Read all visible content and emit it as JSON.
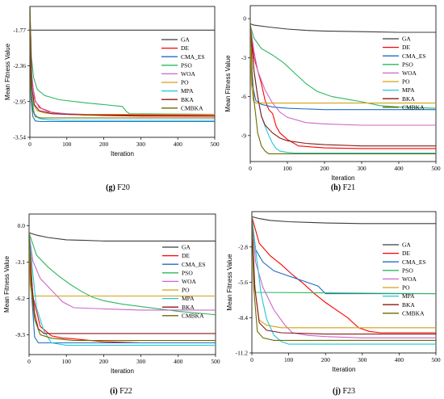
{
  "chart_data": [
    {
      "type": "line",
      "caption_letter": "(g)",
      "caption_text": " F20",
      "xlabel": "Iteration",
      "ylabel": "Mean Fitness Value",
      "xlim": [
        0,
        500
      ],
      "ylim": [
        -3.54,
        -1.38
      ],
      "xticks": [
        0,
        100,
        200,
        300,
        400,
        500
      ],
      "yticks": [
        -1.77,
        -2.36,
        -2.95,
        -3.54
      ],
      "ytick_labels": [
        "-1.77",
        "-2.36",
        "-2.95",
        "-3.54"
      ],
      "legend_position": "top-right",
      "series": [
        {
          "name": "GA",
          "color": "#3c3c3c",
          "x": [
            0,
            1,
            500
          ],
          "y": [
            -1.39,
            -1.77,
            -1.77
          ]
        },
        {
          "name": "DE",
          "color": "#ff0000",
          "x": [
            0,
            5,
            15,
            30,
            60,
            100,
            200,
            300,
            500
          ],
          "y": [
            -1.39,
            -2.6,
            -2.95,
            -3.06,
            -3.13,
            -3.16,
            -3.18,
            -3.19,
            -3.19
          ]
        },
        {
          "name": "CMA_ES",
          "color": "#1e6ec8",
          "x": [
            0,
            3,
            8,
            15,
            30,
            500
          ],
          "y": [
            -1.39,
            -2.9,
            -3.2,
            -3.27,
            -3.28,
            -3.28
          ]
        },
        {
          "name": "PSO",
          "color": "#2eb85c",
          "x": [
            0,
            4,
            10,
            20,
            40,
            80,
            150,
            200,
            250,
            262,
            270,
            500
          ],
          "y": [
            -1.39,
            -2.2,
            -2.55,
            -2.75,
            -2.85,
            -2.92,
            -2.97,
            -3.0,
            -3.03,
            -3.12,
            -3.15,
            -3.16
          ]
        },
        {
          "name": "WOA",
          "color": "#cc66cc",
          "x": [
            0,
            5,
            12,
            25,
            50,
            100,
            200,
            500
          ],
          "y": [
            -1.39,
            -2.5,
            -2.9,
            -3.05,
            -3.12,
            -3.15,
            -3.17,
            -3.18
          ]
        },
        {
          "name": "PO",
          "color": "#d4a017",
          "x": [
            0,
            4,
            10,
            20,
            40,
            100,
            500
          ],
          "y": [
            -1.39,
            -2.7,
            -3.0,
            -3.1,
            -3.14,
            -3.16,
            -3.16
          ]
        },
        {
          "name": "MPA",
          "color": "#1fc8d8",
          "x": [
            0,
            5,
            12,
            25,
            50,
            100,
            500
          ],
          "y": [
            -1.39,
            -2.85,
            -3.15,
            -3.23,
            -3.25,
            -3.26,
            -3.26
          ]
        },
        {
          "name": "BKA",
          "color": "#8b1a1a",
          "x": [
            0,
            5,
            12,
            25,
            60,
            150,
            500
          ],
          "y": [
            -1.39,
            -2.7,
            -3.0,
            -3.1,
            -3.15,
            -3.17,
            -3.18
          ]
        },
        {
          "name": "CMBKA",
          "color": "#6b6b00",
          "x": [
            0,
            3,
            8,
            15,
            30,
            500
          ],
          "y": [
            -1.39,
            -2.8,
            -3.1,
            -3.2,
            -3.22,
            -3.22
          ]
        }
      ]
    },
    {
      "type": "line",
      "caption_letter": "(h)",
      "caption_text": " F21",
      "xlabel": "Iteration",
      "ylabel": "Mean Fitness Value",
      "xlim": [
        0,
        500
      ],
      "ylim": [
        -11,
        1
      ],
      "xticks": [
        0,
        100,
        200,
        300,
        400,
        500
      ],
      "yticks": [
        0,
        -3,
        -6,
        -9
      ],
      "ytick_labels": [
        "0",
        "-3",
        "-6",
        "-9"
      ],
      "legend_position": "top-right",
      "series": [
        {
          "name": "GA",
          "color": "#3c3c3c",
          "x": [
            0,
            10,
            50,
            100,
            150,
            200,
            300,
            400,
            500
          ],
          "y": [
            -0.4,
            -0.5,
            -0.65,
            -0.8,
            -0.9,
            -0.95,
            -1.0,
            -1.05,
            -1.05
          ]
        },
        {
          "name": "DE",
          "color": "#ff0000",
          "x": [
            0,
            10,
            20,
            30,
            40,
            50,
            60,
            70,
            80,
            100,
            130,
            200,
            300,
            500
          ],
          "y": [
            -0.5,
            -3.0,
            -4.0,
            -5.0,
            -6.3,
            -7.0,
            -7.3,
            -8.3,
            -8.8,
            -9.3,
            -9.8,
            -9.95,
            -10.0,
            -10.0
          ]
        },
        {
          "name": "CMA_ES",
          "color": "#1e6ec8",
          "x": [
            0,
            5,
            15,
            30,
            60,
            100,
            200,
            300,
            500
          ],
          "y": [
            -0.5,
            -5.0,
            -6.3,
            -6.6,
            -6.8,
            -6.9,
            -7.0,
            -7.0,
            -7.0
          ]
        },
        {
          "name": "PSO",
          "color": "#2eb85c",
          "x": [
            0,
            10,
            30,
            60,
            90,
            120,
            150,
            180,
            220,
            260,
            300,
            350,
            400,
            500
          ],
          "y": [
            -0.5,
            -1.5,
            -2.3,
            -2.8,
            -3.4,
            -4.2,
            -5.0,
            -5.6,
            -6.0,
            -6.2,
            -6.4,
            -6.7,
            -6.8,
            -6.9
          ]
        },
        {
          "name": "WOA",
          "color": "#cc66cc",
          "x": [
            0,
            10,
            20,
            40,
            60,
            80,
            100,
            150,
            200,
            300,
            500
          ],
          "y": [
            -0.5,
            -2.5,
            -4.0,
            -5.5,
            -6.5,
            -7.2,
            -7.6,
            -8.0,
            -8.1,
            -8.2,
            -8.2
          ]
        },
        {
          "name": "PO",
          "color": "#d4a017",
          "x": [
            0,
            3,
            8,
            15,
            500
          ],
          "y": [
            -0.5,
            -5.0,
            -6.3,
            -6.5,
            -6.5
          ]
        },
        {
          "name": "MPA",
          "color": "#1fc8d8",
          "x": [
            0,
            10,
            20,
            30,
            40,
            50,
            60,
            70,
            80,
            100,
            120,
            500
          ],
          "y": [
            -0.5,
            -4.0,
            -6.0,
            -7.5,
            -8.3,
            -9.0,
            -9.6,
            -10.0,
            -10.2,
            -10.3,
            -10.35,
            -10.35
          ]
        },
        {
          "name": "BKA",
          "color": "#8b1a1a",
          "x": [
            0,
            10,
            20,
            30,
            40,
            60,
            80,
            100,
            150,
            200,
            300,
            500
          ],
          "y": [
            -0.5,
            -4.0,
            -6.0,
            -7.5,
            -8.2,
            -8.8,
            -9.2,
            -9.4,
            -9.6,
            -9.7,
            -9.8,
            -9.8
          ]
        },
        {
          "name": "CMBKA",
          "color": "#6b6b00",
          "x": [
            0,
            5,
            10,
            15,
            20,
            30,
            40,
            50,
            500
          ],
          "y": [
            -0.5,
            -4.0,
            -6.3,
            -7.5,
            -8.8,
            -9.8,
            -10.2,
            -10.4,
            -10.4
          ]
        }
      ]
    },
    {
      "type": "line",
      "caption_letter": "(i)",
      "caption_text": " F22",
      "xlabel": "Iteration",
      "ylabel": "Mean Fitness Value",
      "xlim": [
        0,
        500
      ],
      "ylim": [
        -11,
        1
      ],
      "xticks": [
        0,
        100,
        200,
        300,
        400,
        500
      ],
      "yticks": [
        0.0,
        -3.1,
        -6.2,
        -9.3
      ],
      "ytick_labels": [
        "0.0",
        "-3.1",
        "-6.2",
        "-9.3"
      ],
      "legend_position": "top-right",
      "series": [
        {
          "name": "GA",
          "color": "#3c3c3c",
          "x": [
            0,
            20,
            50,
            100,
            150,
            200,
            300,
            500
          ],
          "y": [
            -0.6,
            -0.8,
            -1.0,
            -1.2,
            -1.25,
            -1.3,
            -1.3,
            -1.3
          ]
        },
        {
          "name": "DE",
          "color": "#ff0000",
          "x": [
            0,
            10,
            30,
            60,
            90,
            100,
            200,
            300,
            500
          ],
          "y": [
            -0.6,
            -6.0,
            -8.6,
            -9.4,
            -9.6,
            -9.6,
            -9.9,
            -10.0,
            -10.0
          ]
        },
        {
          "name": "CMA_ES",
          "color": "#1e6ec8",
          "x": [
            0,
            5,
            15,
            25,
            500
          ],
          "y": [
            -0.6,
            -5.0,
            -9.5,
            -10.0,
            -10.0
          ]
        },
        {
          "name": "PSO",
          "color": "#2eb85c",
          "x": [
            0,
            20,
            50,
            80,
            110,
            140,
            170,
            200,
            250,
            300,
            400,
            500
          ],
          "y": [
            -0.6,
            -2.5,
            -3.5,
            -4.3,
            -5.0,
            -5.6,
            -6.1,
            -6.4,
            -6.7,
            -6.9,
            -7.3,
            -7.6
          ]
        },
        {
          "name": "WOA",
          "color": "#cc66cc",
          "x": [
            0,
            10,
            30,
            60,
            90,
            120,
            200,
            300,
            500
          ],
          "y": [
            -0.6,
            -3.0,
            -4.5,
            -5.5,
            -6.5,
            -7.0,
            -7.1,
            -7.2,
            -7.2
          ]
        },
        {
          "name": "PO",
          "color": "#d4a017",
          "x": [
            0,
            3,
            8,
            500
          ],
          "y": [
            -0.6,
            -5.0,
            -6.0,
            -6.0
          ]
        },
        {
          "name": "MPA",
          "color": "#1fc8d8",
          "x": [
            0,
            10,
            20,
            40,
            60,
            100,
            500
          ],
          "y": [
            -0.6,
            -4.0,
            -7.0,
            -9.0,
            -10.0,
            -10.2,
            -10.2
          ]
        },
        {
          "name": "BKA",
          "color": "#8b1a1a",
          "x": [
            0,
            5,
            15,
            25,
            40,
            500
          ],
          "y": [
            -0.6,
            -4.0,
            -7.5,
            -8.8,
            -9.2,
            -9.2
          ]
        },
        {
          "name": "CMBKA",
          "color": "#6b6b00",
          "x": [
            0,
            5,
            15,
            30,
            60,
            120,
            500
          ],
          "y": [
            -0.6,
            -5.0,
            -8.0,
            -9.3,
            -9.6,
            -9.8,
            -9.8
          ]
        }
      ]
    },
    {
      "type": "line",
      "caption_letter": "(j)",
      "caption_text": " F23",
      "xlabel": "Iteration",
      "ylabel": "Mean Fitness Value",
      "xlim": [
        0,
        500
      ],
      "ylim": [
        -11.2,
        0
      ],
      "xticks": [
        0,
        100,
        200,
        300,
        400,
        500
      ],
      "yticks": [
        -2.8,
        -5.6,
        -8.4,
        -11.2
      ],
      "ytick_labels": [
        "-2.8",
        "-5.6",
        "-8.4",
        "-11.2"
      ],
      "legend_position": "top-right",
      "series": [
        {
          "name": "GA",
          "color": "#3c3c3c",
          "x": [
            0,
            20,
            50,
            100,
            150,
            200,
            300,
            500
          ],
          "y": [
            -0.4,
            -0.55,
            -0.7,
            -0.8,
            -0.85,
            -0.9,
            -0.95,
            -0.95
          ]
        },
        {
          "name": "DE",
          "color": "#ff0000",
          "x": [
            0,
            20,
            50,
            80,
            110,
            140,
            170,
            200,
            230,
            260,
            290,
            320,
            350,
            500
          ],
          "y": [
            -0.4,
            -2.5,
            -3.5,
            -4.2,
            -5.0,
            -5.7,
            -6.5,
            -7.2,
            -7.8,
            -8.4,
            -9.2,
            -9.5,
            -9.6,
            -9.6
          ]
        },
        {
          "name": "CMA_ES",
          "color": "#1e6ec8",
          "x": [
            0,
            10,
            30,
            60,
            90,
            120,
            150,
            180,
            190,
            200,
            500
          ],
          "y": [
            -0.4,
            -3.0,
            -4.0,
            -4.7,
            -5.0,
            -5.3,
            -5.6,
            -5.9,
            -6.2,
            -6.5,
            -6.5
          ]
        },
        {
          "name": "PSO",
          "color": "#2eb85c",
          "x": [
            0,
            5,
            10,
            500
          ],
          "y": [
            -0.4,
            -5.0,
            -6.4,
            -6.5
          ]
        },
        {
          "name": "WOA",
          "color": "#cc66cc",
          "x": [
            0,
            10,
            30,
            60,
            90,
            110,
            150,
            200,
            300,
            500
          ],
          "y": [
            -0.4,
            -4.0,
            -6.0,
            -7.8,
            -9.0,
            -9.6,
            -9.8,
            -9.9,
            -10.0,
            -10.0
          ]
        },
        {
          "name": "PO",
          "color": "#d4a017",
          "x": [
            0,
            8,
            20,
            40,
            80,
            500
          ],
          "y": [
            -0.4,
            -6.0,
            -8.6,
            -9.0,
            -9.2,
            -9.2
          ]
        },
        {
          "name": "MPA",
          "color": "#1fc8d8",
          "x": [
            0,
            10,
            25,
            40,
            60,
            80,
            100,
            500
          ],
          "y": [
            -0.4,
            -3.0,
            -6.5,
            -8.5,
            -9.8,
            -10.3,
            -10.5,
            -10.5
          ]
        },
        {
          "name": "BKA",
          "color": "#8b1a1a",
          "x": [
            0,
            8,
            20,
            40,
            80,
            200,
            500
          ],
          "y": [
            -0.4,
            -6.0,
            -8.8,
            -9.4,
            -9.6,
            -9.7,
            -9.7
          ]
        },
        {
          "name": "CMBKA",
          "color": "#6b6b00",
          "x": [
            0,
            5,
            15,
            30,
            60,
            500
          ],
          "y": [
            -0.4,
            -6.0,
            -9.5,
            -10.0,
            -10.2,
            -10.2
          ]
        }
      ]
    }
  ]
}
